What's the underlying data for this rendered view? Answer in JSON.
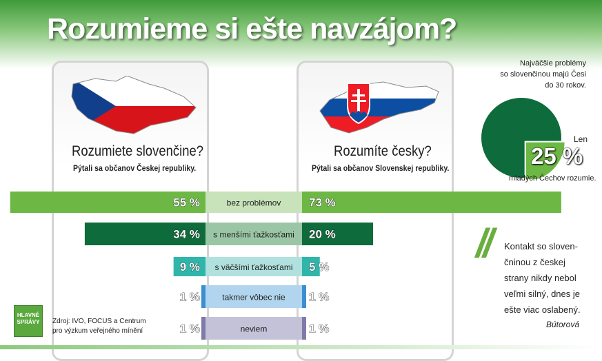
{
  "title": "Rozumieme si ešte navzájom?",
  "left": {
    "question": "Rozumiete slovenčine?",
    "subtitle": "Pýtali sa občanov Českej republiky."
  },
  "right": {
    "question": "Rozumíte česky?",
    "subtitle": "Pýtali sa občanov Slovenskej republiky."
  },
  "colors": {
    "header_green": "#3f9a3a",
    "czech_blue": "#123f8c",
    "czech_red": "#d7141a",
    "slovak_blue": "#0b4ea2",
    "slovak_red": "#ee1c25"
  },
  "chart_data": {
    "type": "bar",
    "categories": [
      "bez problémov",
      "s menšími ťažkosťami",
      "s väčšími ťažkosťami",
      "takmer vôbec nie",
      "neviem"
    ],
    "series": [
      {
        "values": [
          55,
          34,
          9,
          1,
          1
        ],
        "labels": [
          "55 %",
          "34 %",
          "9 %",
          "1 %",
          "1 %"
        ]
      },
      {
        "values": [
          73,
          20,
          5,
          1,
          1
        ],
        "labels": [
          "73 %",
          "20 %",
          "5 %",
          "1 %",
          "1 %"
        ]
      }
    ],
    "colors": [
      "#6db845",
      "#0e6b3b",
      "#2fb6aa",
      "#3b8fd1",
      "#7e7ba8"
    ],
    "light_colors": [
      "#c8e3ba",
      "#9bc6a6",
      "#b0e1de",
      "#b1d5ee",
      "#c3c2d8"
    ]
  },
  "pie": {
    "note": [
      "Najväčšie problémy",
      "so slovenčinou majú Česi",
      "do 30 rokov."
    ],
    "len": "Len",
    "percent_label": "25 %",
    "value": 25,
    "caption": "mladých Čechov rozumie.",
    "color_main": "#0e6b3b",
    "color_slice": "#6db845"
  },
  "quote": {
    "text": "Kontakt so sloven-čninou z českej strany nikdy nebol veľmi silný, dnes je ešte viac oslabený.",
    "author": "Bútorová"
  },
  "source": {
    "logo_line1": "HLAVNÉ",
    "logo_line2": "SPRÁVY",
    "line1": "Zdroj: IVO, FOCUS a Centrum",
    "line2": "pro výzkum veřejného mínění"
  }
}
